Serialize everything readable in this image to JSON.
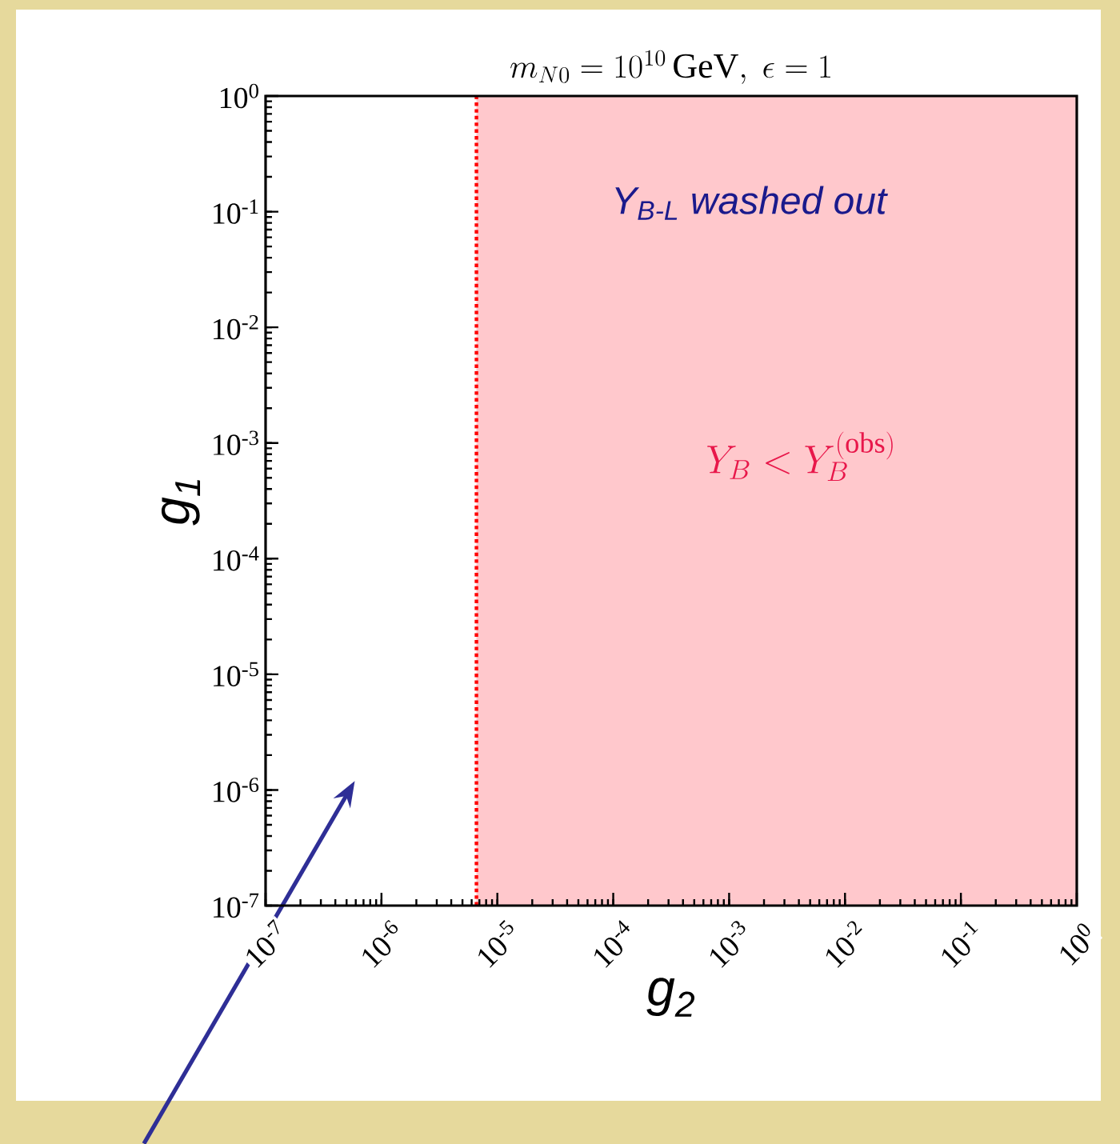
{
  "chart_data": {
    "type": "line",
    "title": "m_{N0} = 10^{10}\\,\\mathrm{GeV},\\ \\epsilon = 1",
    "xlabel": "g$_{2}$",
    "ylabel": "g$_{1}$",
    "log": "xy",
    "xlim": [
      1e-07,
      1
    ],
    "ylim": [
      1e-07,
      1
    ],
    "xticks": [
      {
        "value": 1e-07,
        "label": "10$^{-7}$"
      },
      {
        "value": 1e-06,
        "label": "10$^{-6}$"
      },
      {
        "value": 1e-05,
        "label": "10$^{-5}$"
      },
      {
        "value": 0.0001,
        "label": "10$^{-4}$"
      },
      {
        "value": 0.001,
        "label": "10$^{-3}$"
      },
      {
        "value": 0.01,
        "label": "10$^{-2}$"
      },
      {
        "value": 0.1,
        "label": "10$^{-1}$"
      },
      {
        "value": 1,
        "label": "10$^{0}$"
      }
    ],
    "yticks": [
      {
        "value": 1e-07,
        "label": "10$^{-7}$"
      },
      {
        "value": 1e-06,
        "label": "10$^{-6}$"
      },
      {
        "value": 1e-05,
        "label": "10$^{-5}$"
      },
      {
        "value": 0.0001,
        "label": "10$^{-4}$"
      },
      {
        "value": 0.001,
        "label": "10$^{-3}$"
      },
      {
        "value": 0.01,
        "label": "10$^{-2}$"
      },
      {
        "value": 0.1,
        "label": "10$^{-1}$"
      },
      {
        "value": 1,
        "label": "10$^{0}$"
      }
    ],
    "ref_lines": [
      {
        "axis": "x",
        "value": 6.6e-06,
        "color": "#ff0000",
        "line_style": "dotted"
      }
    ],
    "bands": [
      {
        "axis": "x",
        "from": 6.6e-06,
        "to": 1,
        "color": "#ffc8cc"
      }
    ],
    "annotations": [
      "Y$_{B-L}$ washed out",
      "Y_B < Y_B^{(\\mathrm{obs})}"
    ]
  }
}
